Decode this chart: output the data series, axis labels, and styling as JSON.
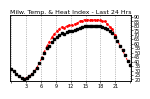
{
  "title": "Milw. Temp. & Heat Index - Last 24 Hrs",
  "bg_color": "#ffffff",
  "plot_bg": "#ffffff",
  "grid_color": "#888888",
  "line1_color": "#000000",
  "line2_color": "#ff0000",
  "marker1": "s",
  "marker2": ".",
  "marker_size1": 1.5,
  "marker_size2": 2.0,
  "ylim": [
    18,
    92
  ],
  "temp_data": [
    32,
    29,
    26,
    24,
    22,
    21,
    22,
    24,
    26,
    29,
    33,
    38,
    44,
    50,
    55,
    58,
    62,
    65,
    67,
    70,
    72,
    71,
    73,
    74,
    74,
    75,
    76,
    78,
    79,
    80,
    80,
    80,
    80,
    80,
    80,
    80,
    79,
    78,
    76,
    74,
    72,
    68,
    63,
    58,
    53,
    47,
    41,
    36
  ],
  "heat_data": [
    32,
    29,
    26,
    24,
    22,
    21,
    22,
    24,
    26,
    29,
    33,
    38,
    44,
    51,
    57,
    62,
    67,
    71,
    74,
    77,
    79,
    78,
    80,
    81,
    81,
    82,
    83,
    85,
    86,
    87,
    87,
    87,
    87,
    87,
    87,
    87,
    86,
    85,
    82,
    79,
    76,
    70,
    63,
    58,
    53,
    47,
    41,
    36
  ],
  "title_fontsize": 4.5,
  "tick_fontsize": 3.5,
  "yticks": [
    20,
    25,
    30,
    35,
    40,
    45,
    50,
    55,
    60,
    65,
    70,
    75,
    80,
    85,
    90
  ],
  "n_vgrid": 9,
  "x_tick_labels": [
    "",
    "3",
    "6",
    "9",
    "12",
    "15",
    "18",
    "21",
    ""
  ]
}
